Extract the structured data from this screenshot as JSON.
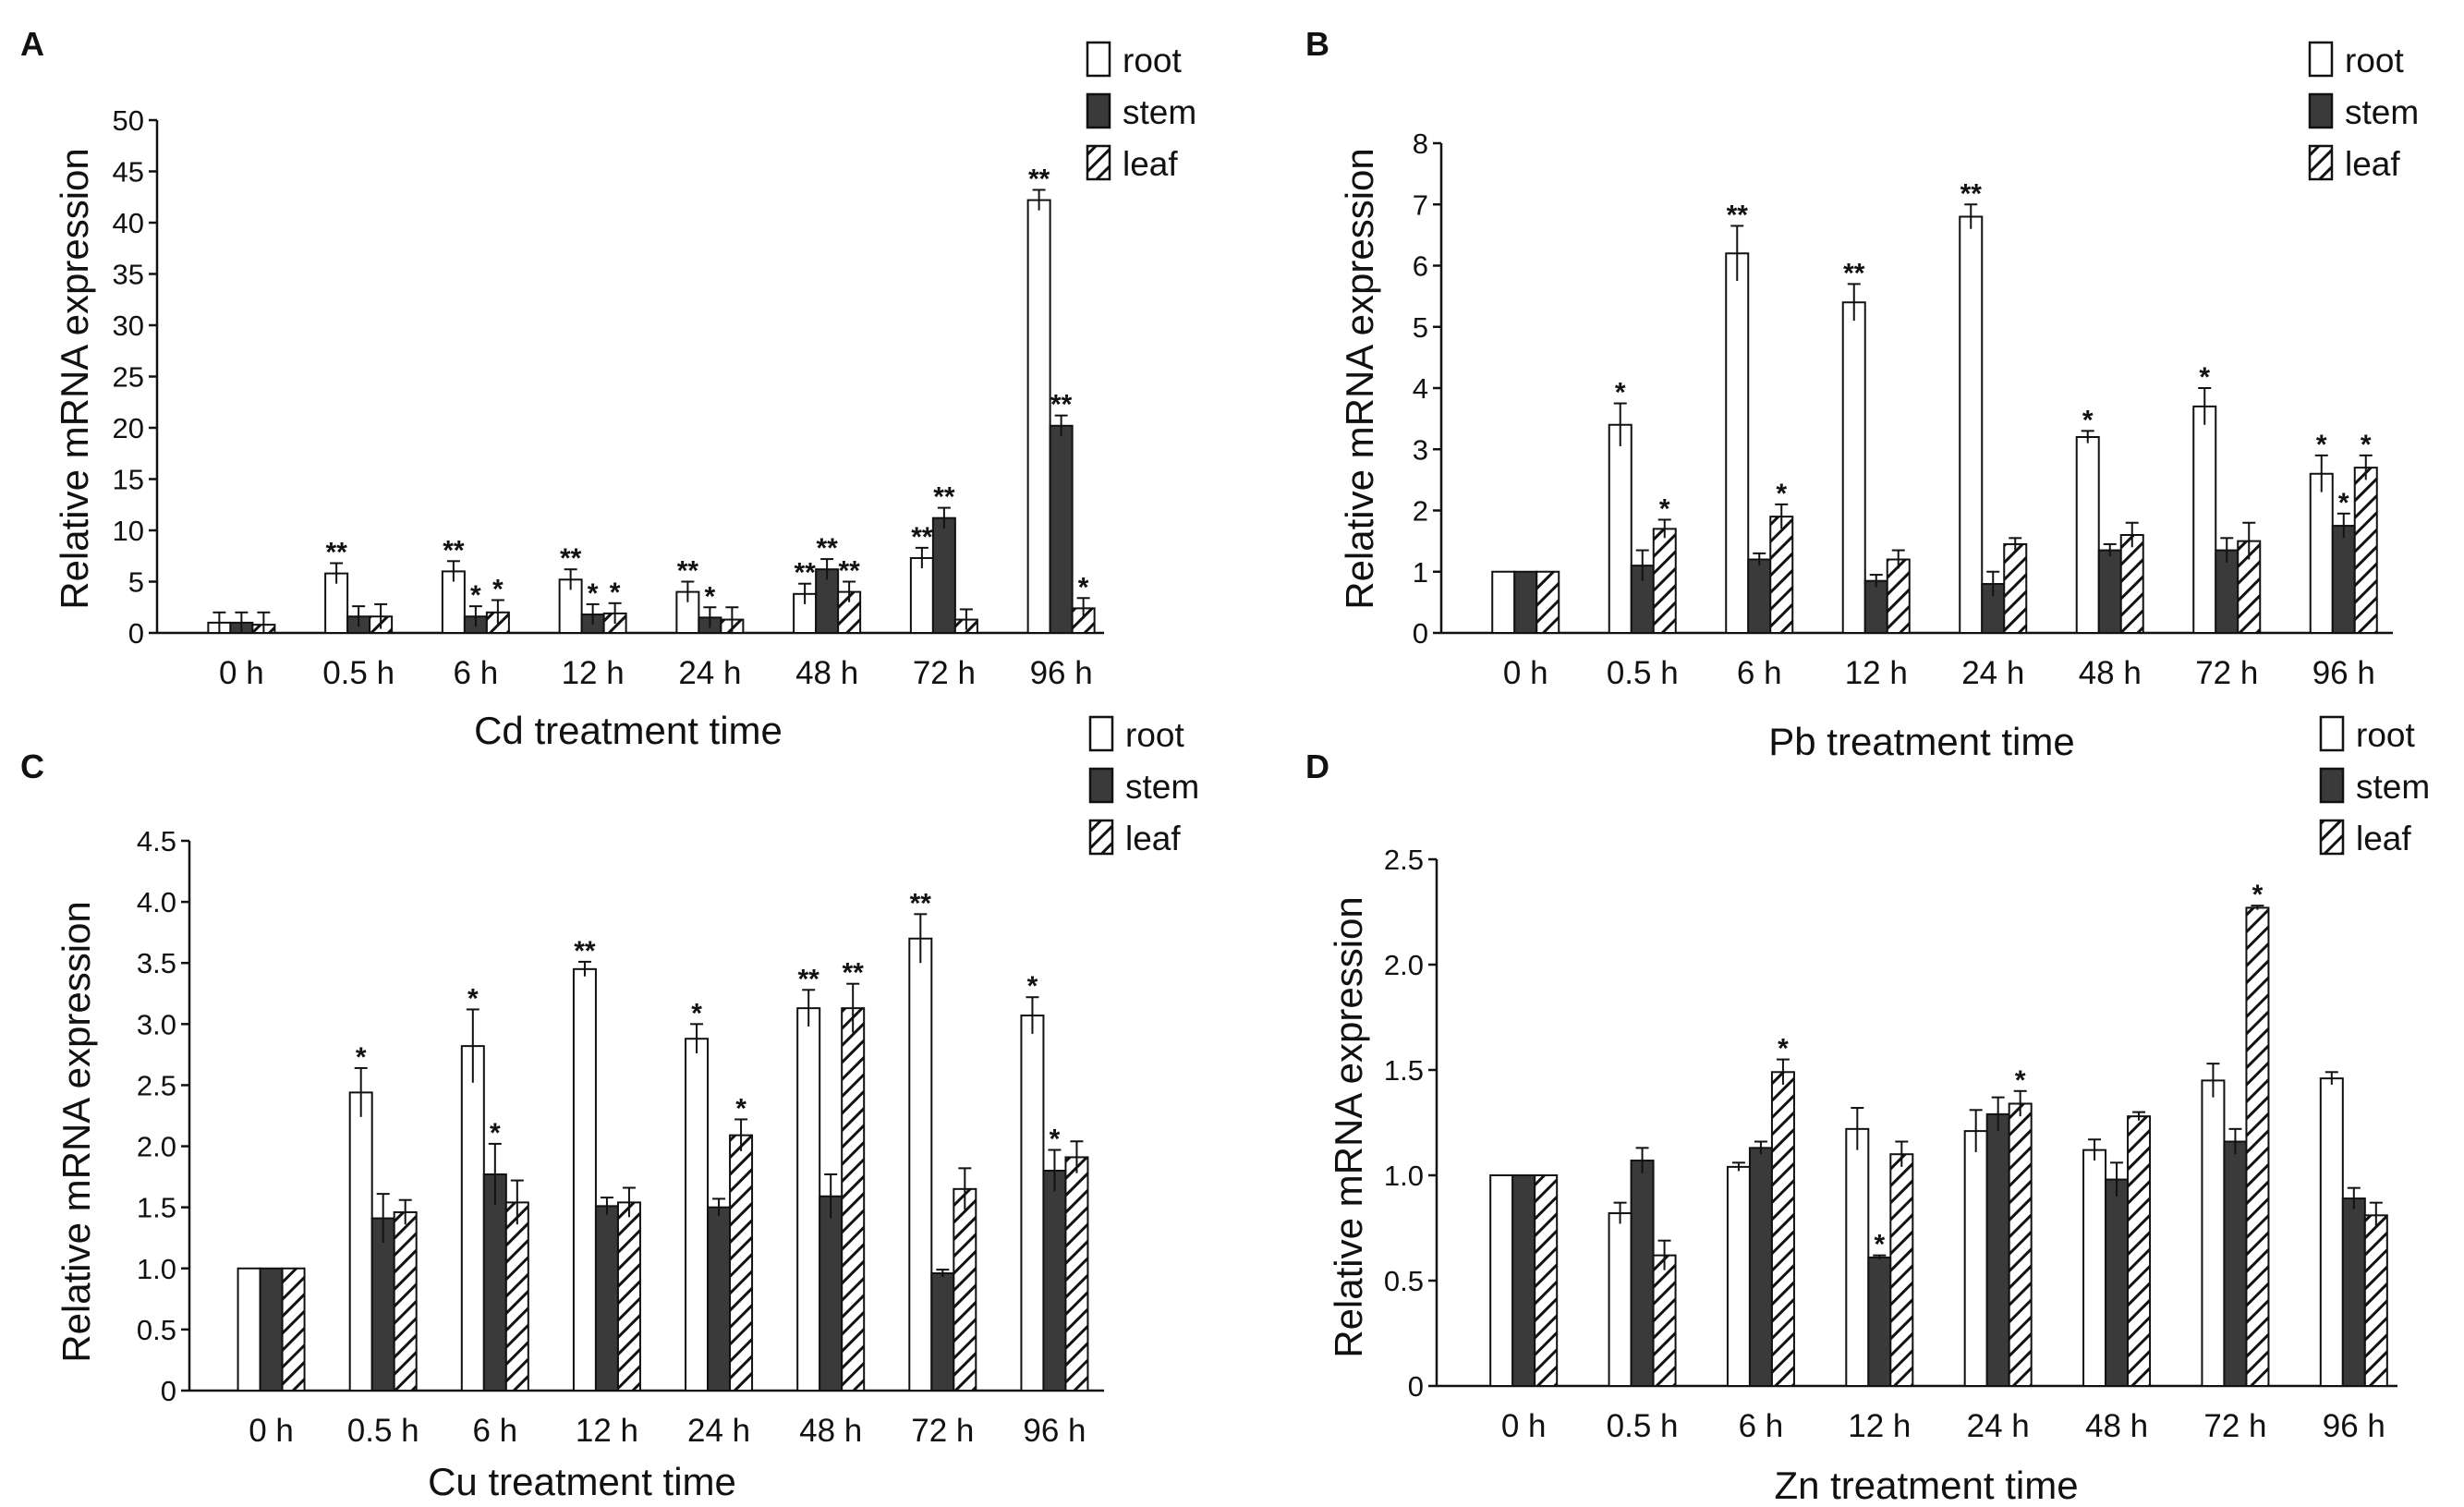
{
  "colors": {
    "root": "#ffffff",
    "stem": "#3a3a3a",
    "leaf_hatch": "#111111",
    "axis": "#111111"
  },
  "legend": [
    "root",
    "stem",
    "leaf"
  ],
  "chart_data": [
    {
      "id": "A",
      "type": "bar",
      "panel_label": "A",
      "xlabel": "Cd treatment time",
      "ylabel": "Relative mRNA expression",
      "ylim": [
        0,
        50
      ],
      "yticks": [
        "0",
        "5",
        "10",
        "15",
        "20",
        "25",
        "30",
        "35",
        "40",
        "45",
        "50"
      ],
      "categories": [
        "0 h",
        "0.5 h",
        "6 h",
        "12 h",
        "24 h",
        "48 h",
        "72 h",
        "96 h"
      ],
      "series": [
        {
          "name": "root",
          "values": [
            1.0,
            5.8,
            6.0,
            5.2,
            4.0,
            3.8,
            7.3,
            42.2
          ],
          "errors": [
            1.0,
            1.0,
            1.0,
            1.0,
            1.0,
            1.0,
            1.0,
            1.0
          ],
          "sig": [
            "",
            "**",
            "**",
            "**",
            "**",
            "**",
            "**",
            "**"
          ]
        },
        {
          "name": "stem",
          "values": [
            1.0,
            1.6,
            1.6,
            1.8,
            1.5,
            6.2,
            11.2,
            20.2
          ],
          "errors": [
            1.0,
            1.0,
            1.0,
            1.0,
            1.0,
            1.0,
            1.0,
            1.0
          ],
          "sig": [
            "",
            "",
            "*",
            "*",
            "*",
            "**",
            "**",
            "**"
          ]
        },
        {
          "name": "leaf",
          "values": [
            0.8,
            1.6,
            2.0,
            1.9,
            1.3,
            4.0,
            1.3,
            2.4
          ],
          "errors": [
            1.2,
            1.2,
            1.2,
            1.0,
            1.2,
            1.0,
            1.0,
            1.0
          ],
          "sig": [
            "",
            "",
            "*",
            "*",
            "",
            "**",
            "",
            "*"
          ]
        }
      ]
    },
    {
      "id": "B",
      "type": "bar",
      "panel_label": "B",
      "xlabel": "Pb treatment time",
      "ylabel": "Relative mRNA expression",
      "ylim": [
        0,
        8
      ],
      "yticks": [
        "0",
        "1",
        "2",
        "3",
        "4",
        "5",
        "6",
        "7",
        "8"
      ],
      "categories": [
        "0 h",
        "0.5 h",
        "6 h",
        "12 h",
        "24 h",
        "48 h",
        "72 h",
        "96 h"
      ],
      "series": [
        {
          "name": "root",
          "values": [
            1.0,
            3.4,
            6.2,
            5.4,
            6.8,
            3.2,
            3.7,
            2.6
          ],
          "errors": [
            0,
            0.35,
            0.45,
            0.3,
            0.2,
            0.1,
            0.3,
            0.3
          ],
          "sig": [
            "",
            "*",
            "**",
            "**",
            "**",
            "*",
            "*",
            "*"
          ]
        },
        {
          "name": "stem",
          "values": [
            1.0,
            1.1,
            1.2,
            0.85,
            0.8,
            1.35,
            1.35,
            1.75
          ],
          "errors": [
            0,
            0.25,
            0.1,
            0.1,
            0.2,
            0.1,
            0.2,
            0.2
          ],
          "sig": [
            "",
            "",
            "",
            "",
            "",
            "",
            "",
            "*"
          ]
        },
        {
          "name": "leaf",
          "values": [
            1.0,
            1.7,
            1.9,
            1.2,
            1.45,
            1.6,
            1.5,
            2.7
          ],
          "errors": [
            0,
            0.15,
            0.2,
            0.15,
            0.1,
            0.2,
            0.3,
            0.2
          ],
          "sig": [
            "",
            "*",
            "*",
            "",
            "",
            "",
            "",
            "*"
          ]
        }
      ]
    },
    {
      "id": "C",
      "type": "bar",
      "panel_label": "C",
      "xlabel": "Cu treatment time",
      "ylabel": "Relative mRNA expression",
      "ylim": [
        0,
        4.5
      ],
      "yticks": [
        "0",
        "0.5",
        "1.0",
        "1.5",
        "2.0",
        "2.5",
        "3.0",
        "3.5",
        "4.0",
        "4.5"
      ],
      "categories": [
        "0 h",
        "0.5 h",
        "6 h",
        "12 h",
        "24 h",
        "48 h",
        "72 h",
        "96 h"
      ],
      "series": [
        {
          "name": "root",
          "values": [
            1.0,
            2.44,
            2.82,
            3.45,
            2.88,
            3.13,
            3.7,
            3.07
          ],
          "errors": [
            0,
            0.2,
            0.3,
            0.06,
            0.12,
            0.15,
            0.2,
            0.15
          ],
          "sig": [
            "",
            "*",
            "*",
            "**",
            "*",
            "**",
            "**",
            "*"
          ]
        },
        {
          "name": "stem",
          "values": [
            1.0,
            1.41,
            1.77,
            1.51,
            1.5,
            1.59,
            0.96,
            1.8
          ],
          "errors": [
            0,
            0.2,
            0.25,
            0.07,
            0.07,
            0.18,
            0.03,
            0.17
          ],
          "sig": [
            "",
            "",
            "*",
            "",
            "",
            "",
            "",
            "*"
          ]
        },
        {
          "name": "leaf",
          "values": [
            1.0,
            1.46,
            1.54,
            1.54,
            2.09,
            3.13,
            1.65,
            1.91
          ],
          "errors": [
            0,
            0.1,
            0.18,
            0.12,
            0.13,
            0.2,
            0.17,
            0.13
          ],
          "sig": [
            "",
            "",
            "",
            "",
            "*",
            "**",
            "",
            ""
          ]
        }
      ]
    },
    {
      "id": "D",
      "type": "bar",
      "panel_label": "D",
      "xlabel": "Zn treatment time",
      "ylabel": "Relative mRNA expression",
      "ylim": [
        0,
        2.5
      ],
      "yticks": [
        "0",
        "0.5",
        "1.0",
        "1.5",
        "2.0",
        "2.5"
      ],
      "categories": [
        "0 h",
        "0.5 h",
        "6 h",
        "12 h",
        "24 h",
        "48 h",
        "72 h",
        "96 h"
      ],
      "series": [
        {
          "name": "root",
          "values": [
            1.0,
            0.82,
            1.04,
            1.22,
            1.21,
            1.12,
            1.45,
            1.46
          ],
          "errors": [
            0,
            0.05,
            0.02,
            0.1,
            0.1,
            0.05,
            0.08,
            0.03
          ],
          "sig": [
            "",
            "",
            "",
            "",
            "",
            "",
            "",
            ""
          ]
        },
        {
          "name": "stem",
          "values": [
            1.0,
            1.07,
            1.13,
            0.61,
            1.29,
            0.98,
            1.16,
            0.89
          ],
          "errors": [
            0,
            0.06,
            0.03,
            0.01,
            0.08,
            0.08,
            0.06,
            0.05
          ],
          "sig": [
            "",
            "",
            "",
            "*",
            "",
            "",
            "",
            ""
          ]
        },
        {
          "name": "leaf",
          "values": [
            1.0,
            0.62,
            1.49,
            1.1,
            1.34,
            1.28,
            2.27,
            0.81
          ],
          "errors": [
            0,
            0.07,
            0.06,
            0.06,
            0.06,
            0.02,
            0.01,
            0.06
          ],
          "sig": [
            "",
            "",
            "*",
            "",
            "*",
            "",
            "*",
            ""
          ]
        }
      ]
    }
  ]
}
